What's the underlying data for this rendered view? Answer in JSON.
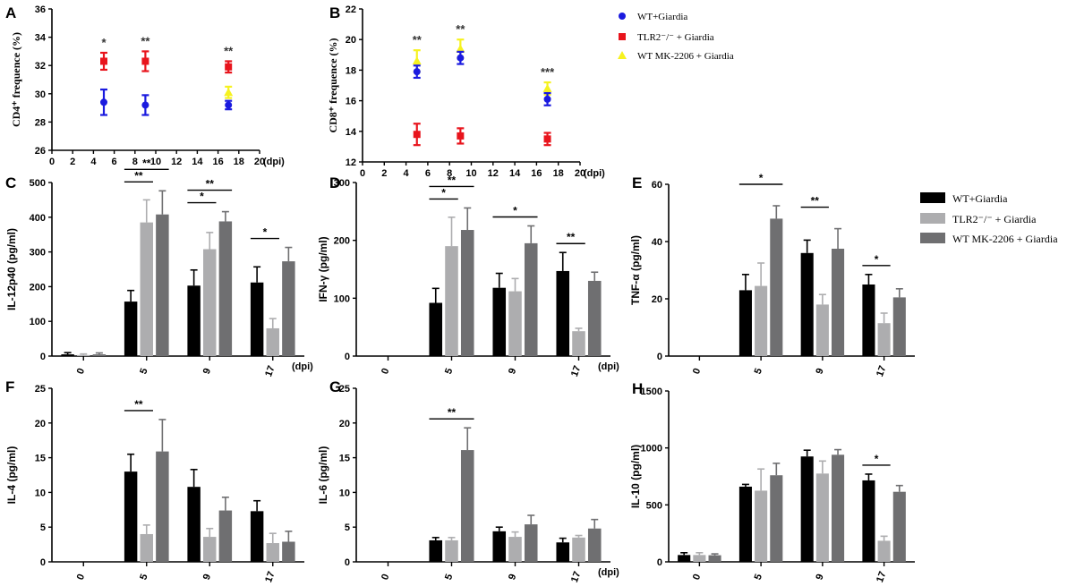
{
  "legend_top": {
    "entries": [
      {
        "name": "WT+Giardia",
        "color": "#1a1adf"
      },
      {
        "name": "TLR2⁻/⁻ + Giardia",
        "color": "#e8141c"
      },
      {
        "name": "WT MK-2206 + Giardia",
        "color": "#f6f21f"
      }
    ]
  },
  "legend_bar": {
    "entries": [
      {
        "name": "WT+Giardia",
        "color": "#000000"
      },
      {
        "name": "TLR2⁻/⁻ + Giardia",
        "color": "#adadaf"
      },
      {
        "name": "WT MK-2206 + Giardia",
        "color": "#6f6f71"
      }
    ]
  },
  "chart_data": [
    {
      "id": "A",
      "type": "scatter",
      "panel_letter": "A",
      "ylabel": "CD4⁺ frequence (%)",
      "xlabel_unit": "(dpi)",
      "xlim": [
        0,
        20
      ],
      "xticks": [
        0,
        2,
        4,
        6,
        8,
        10,
        12,
        14,
        16,
        18,
        20
      ],
      "ylim": [
        26,
        36
      ],
      "yticks": [
        26,
        28,
        30,
        32,
        34,
        36
      ],
      "series": [
        {
          "name": "WT+Giardia",
          "color": "#1a1adf",
          "marker": "circle",
          "points": [
            {
              "x": 5,
              "y": 29.4,
              "err": 0.9
            },
            {
              "x": 9,
              "y": 29.2,
              "err": 0.7
            },
            {
              "x": 17,
              "y": 29.2,
              "err": 0.3
            }
          ]
        },
        {
          "name": "TLR2-/- + Giardia",
          "color": "#e8141c",
          "marker": "square",
          "points": [
            {
              "x": 5,
              "y": 32.3,
              "err": 0.6
            },
            {
              "x": 9,
              "y": 32.3,
              "err": 0.7
            },
            {
              "x": 17,
              "y": 31.9,
              "err": 0.4
            }
          ]
        },
        {
          "name": "WT MK-2206 + Giardia",
          "color": "#f6f21f",
          "marker": "triangle",
          "points": [
            {
              "x": 17,
              "y": 30.1,
              "err": 0.4
            }
          ]
        }
      ],
      "annotations": [
        {
          "x": 5,
          "text": "*"
        },
        {
          "x": 9,
          "text": "**"
        },
        {
          "x": 17,
          "text": "**"
        }
      ]
    },
    {
      "id": "B",
      "type": "scatter",
      "panel_letter": "B",
      "ylabel": "CD8⁺ frequence (%)",
      "xlabel_unit": "(dpi)",
      "xlim": [
        0,
        20
      ],
      "xticks": [
        0,
        2,
        4,
        6,
        8,
        10,
        12,
        14,
        16,
        18,
        20
      ],
      "ylim": [
        12,
        22
      ],
      "yticks": [
        12,
        14,
        16,
        18,
        20,
        22
      ],
      "series": [
        {
          "name": "WT+Giardia",
          "color": "#1a1adf",
          "marker": "circle",
          "points": [
            {
              "x": 5,
              "y": 17.9,
              "err": 0.4
            },
            {
              "x": 9,
              "y": 18.8,
              "err": 0.4
            },
            {
              "x": 17,
              "y": 16.1,
              "err": 0.4
            }
          ]
        },
        {
          "name": "TLR2-/- + Giardia",
          "color": "#e8141c",
          "marker": "square",
          "points": [
            {
              "x": 5,
              "y": 13.8,
              "err": 0.7
            },
            {
              "x": 9,
              "y": 13.7,
              "err": 0.5
            },
            {
              "x": 17,
              "y": 13.5,
              "err": 0.4
            }
          ]
        },
        {
          "name": "WT MK-2206 + Giardia",
          "color": "#f6f21f",
          "marker": "triangle",
          "points": [
            {
              "x": 5,
              "y": 18.6,
              "err": 0.7
            },
            {
              "x": 9,
              "y": 19.4,
              "err": 0.6
            },
            {
              "x": 17,
              "y": 16.8,
              "err": 0.4
            }
          ]
        }
      ],
      "annotations": [
        {
          "x": 5,
          "text": "**"
        },
        {
          "x": 9,
          "text": "**"
        },
        {
          "x": 17,
          "text": "***"
        }
      ]
    },
    {
      "id": "C",
      "type": "bar",
      "panel_letter": "C",
      "ylabel": "IL-12p40 (pg/ml)",
      "xlabel_unit": "(dpi)",
      "categories": [
        "0",
        "5",
        "9",
        "17"
      ],
      "ylim": [
        0,
        500
      ],
      "yticks": [
        0,
        100,
        200,
        300,
        400,
        500
      ],
      "series": [
        {
          "name": "WT+Giardia",
          "values": [
            5,
            157,
            203,
            212
          ],
          "errors": [
            5,
            32,
            45,
            45
          ]
        },
        {
          "name": "TLR2-/- + Giardia",
          "values": [
            3,
            385,
            308,
            80
          ],
          "errors": [
            3,
            65,
            48,
            28
          ]
        },
        {
          "name": "WT MK-2206 + Giardia",
          "values": [
            5,
            408,
            388,
            273
          ],
          "errors": [
            4,
            68,
            28,
            40
          ]
        }
      ],
      "sig": [
        {
          "cat": 1,
          "from": 0,
          "to": 1,
          "text": "**",
          "level": 0
        },
        {
          "cat": 1,
          "from": 0,
          "to": 2,
          "text": "**",
          "level": 1
        },
        {
          "cat": 2,
          "from": 0,
          "to": 1,
          "text": "*",
          "level": 0
        },
        {
          "cat": 2,
          "from": 0,
          "to": 2,
          "text": "**",
          "level": 1
        },
        {
          "cat": 3,
          "from": 0,
          "to": 1,
          "text": "*",
          "level": 0
        }
      ]
    },
    {
      "id": "D",
      "type": "bar",
      "panel_letter": "D",
      "ylabel": "IFN-γ (pg/ml)",
      "xlabel_unit": "(dpi)",
      "categories": [
        "0",
        "5",
        "9",
        "17"
      ],
      "ylim": [
        0,
        300
      ],
      "yticks": [
        0,
        100,
        200,
        300
      ],
      "series": [
        {
          "name": "WT+Giardia",
          "values": [
            0,
            92,
            118,
            147
          ],
          "errors": [
            0,
            25,
            25,
            32
          ]
        },
        {
          "name": "TLR2-/- + Giardia",
          "values": [
            0,
            190,
            112,
            43
          ],
          "errors": [
            0,
            50,
            22,
            5
          ]
        },
        {
          "name": "WT MK-2206 + Giardia",
          "values": [
            0,
            218,
            195,
            130
          ],
          "errors": [
            0,
            38,
            30,
            15
          ]
        }
      ],
      "sig": [
        {
          "cat": 1,
          "from": 0,
          "to": 1,
          "text": "*",
          "level": 0
        },
        {
          "cat": 1,
          "from": 0,
          "to": 2,
          "text": "**",
          "level": 1
        },
        {
          "cat": 2,
          "from": 0,
          "to": 2,
          "text": "*",
          "level": 0
        },
        {
          "cat": 3,
          "from": 0,
          "to": 1,
          "text": "**",
          "level": 0
        }
      ]
    },
    {
      "id": "E",
      "type": "bar",
      "panel_letter": "E",
      "ylabel": "TNF-α (pg/ml)",
      "xlabel_unit": "",
      "categories": [
        "0",
        "5",
        "9",
        "17"
      ],
      "ylim": [
        0,
        60
      ],
      "yticks": [
        0,
        20,
        40,
        60
      ],
      "series": [
        {
          "name": "WT+Giardia",
          "values": [
            0,
            23,
            36,
            25
          ],
          "errors": [
            0,
            5.5,
            4.5,
            3.5
          ]
        },
        {
          "name": "TLR2-/- + Giardia",
          "values": [
            0,
            24.5,
            18,
            11.5
          ],
          "errors": [
            0,
            8,
            3.5,
            3.5
          ]
        },
        {
          "name": "WT MK-2206 + Giardia",
          "values": [
            0,
            48,
            37.5,
            20.5
          ],
          "errors": [
            0,
            4.5,
            7,
            3
          ]
        }
      ],
      "sig": [
        {
          "cat": 1,
          "from": 0,
          "to": 2,
          "text": "*",
          "level": 1
        },
        {
          "cat": 2,
          "from": 0,
          "to": 1,
          "text": "**",
          "level": 1
        },
        {
          "cat": 3,
          "from": 0,
          "to": 1,
          "text": "*",
          "level": 0
        }
      ]
    },
    {
      "id": "F",
      "type": "bar",
      "panel_letter": "F",
      "ylabel": "IL-4 (pg/ml)",
      "xlabel_unit": "",
      "categories": [
        "0",
        "5",
        "9",
        "17"
      ],
      "ylim": [
        0,
        25
      ],
      "yticks": [
        0,
        5,
        10,
        15,
        20,
        25
      ],
      "series": [
        {
          "name": "WT+Giardia",
          "values": [
            0,
            13,
            10.8,
            7.3
          ],
          "errors": [
            0,
            2.5,
            2.5,
            1.5
          ]
        },
        {
          "name": "TLR2-/- + Giardia",
          "values": [
            0,
            4,
            3.6,
            2.7
          ],
          "errors": [
            0,
            1.3,
            1.2,
            1.4
          ]
        },
        {
          "name": "WT MK-2206 + Giardia",
          "values": [
            0,
            15.9,
            7.4,
            2.9
          ],
          "errors": [
            0,
            4.6,
            1.9,
            1.5
          ]
        }
      ],
      "sig": [
        {
          "cat": 1,
          "from": 0,
          "to": 1,
          "text": "**",
          "level": 0
        }
      ]
    },
    {
      "id": "G",
      "type": "bar",
      "panel_letter": "G",
      "ylabel": "IL-6 (pg/ml)",
      "xlabel_unit": "(dpi)",
      "categories": [
        "0",
        "5",
        "9",
        "17"
      ],
      "ylim": [
        0,
        25
      ],
      "yticks": [
        0,
        5,
        10,
        15,
        20,
        25
      ],
      "series": [
        {
          "name": "WT+Giardia",
          "values": [
            0,
            3.1,
            4.4,
            2.8
          ],
          "errors": [
            0,
            0.4,
            0.6,
            0.6
          ]
        },
        {
          "name": "TLR2-/- + Giardia",
          "values": [
            0,
            3.1,
            3.6,
            3.5
          ],
          "errors": [
            0,
            0.4,
            0.7,
            0.3
          ]
        },
        {
          "name": "WT MK-2206 + Giardia",
          "values": [
            0,
            16.1,
            5.4,
            4.8
          ],
          "errors": [
            0,
            3.2,
            1.3,
            1.3
          ]
        }
      ],
      "sig": [
        {
          "cat": 1,
          "from": 0,
          "to": 2,
          "text": "**",
          "level": 0
        }
      ]
    },
    {
      "id": "H",
      "type": "bar",
      "panel_letter": "H",
      "ylabel": "IL-10 (pg/ml)",
      "xlabel_unit": "",
      "categories": [
        "0",
        "5",
        "9",
        "17"
      ],
      "ylim": [
        0,
        1500
      ],
      "yticks": [
        0,
        500,
        1000,
        1500
      ],
      "series": [
        {
          "name": "WT+Giardia",
          "values": [
            60,
            660,
            925,
            715
          ],
          "errors": [
            20,
            20,
            55,
            55
          ]
        },
        {
          "name": "TLR2-/- + Giardia",
          "values": [
            60,
            625,
            775,
            185
          ],
          "errors": [
            20,
            190,
            110,
            40
          ]
        },
        {
          "name": "WT MK-2206 + Giardia",
          "values": [
            58,
            760,
            940,
            615
          ],
          "errors": [
            12,
            105,
            45,
            55
          ]
        }
      ],
      "sig": [
        {
          "cat": 3,
          "from": 0,
          "to": 1,
          "text": "*",
          "level": 0
        }
      ]
    }
  ]
}
